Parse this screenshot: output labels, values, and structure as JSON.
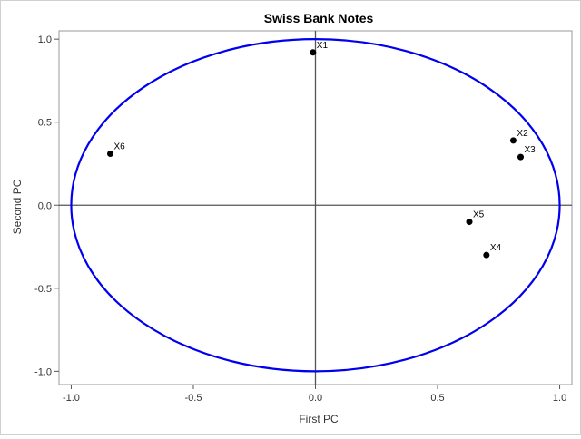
{
  "chart_data": {
    "type": "scatter",
    "title": "Swiss Bank Notes",
    "xlabel": "First PC",
    "ylabel": "Second PC",
    "xlim": [
      -1.05,
      1.05
    ],
    "ylim": [
      -1.08,
      1.05
    ],
    "x_ticks": [
      -1.0,
      -0.5,
      0.0,
      0.5,
      1.0
    ],
    "x_tick_labels": [
      "-1.0",
      "-0.5",
      "0.0",
      "0.5",
      "1.0"
    ],
    "y_ticks": [
      -1.0,
      -0.5,
      0.0,
      0.5,
      1.0
    ],
    "y_tick_labels": [
      "-1.0",
      "-0.5",
      "0.0",
      "0.5",
      "1.0"
    ],
    "grid": false,
    "reference_lines": {
      "x": 0,
      "y": 0
    },
    "unit_circle": {
      "radius": 1,
      "color": "#0000ee"
    },
    "point_color": "#000000",
    "points": [
      {
        "label": "X1",
        "x": -0.01,
        "y": 0.92
      },
      {
        "label": "X2",
        "x": 0.81,
        "y": 0.39
      },
      {
        "label": "X3",
        "x": 0.84,
        "y": 0.29
      },
      {
        "label": "X4",
        "x": 0.7,
        "y": -0.3
      },
      {
        "label": "X5",
        "x": 0.63,
        "y": -0.1
      },
      {
        "label": "X6",
        "x": -0.84,
        "y": 0.31
      }
    ]
  }
}
